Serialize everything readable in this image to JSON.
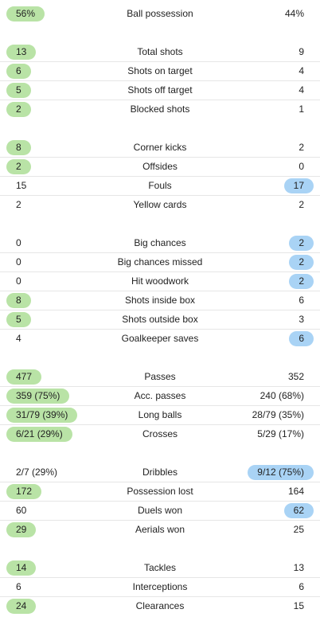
{
  "groups": [
    {
      "rows": [
        {
          "label": "Ball possession",
          "home": "56%",
          "away": "44%",
          "hl": "home"
        }
      ]
    },
    {
      "rows": [
        {
          "label": "Total shots",
          "home": "13",
          "away": "9",
          "hl": "home"
        },
        {
          "label": "Shots on target",
          "home": "6",
          "away": "4",
          "hl": "home"
        },
        {
          "label": "Shots off target",
          "home": "5",
          "away": "4",
          "hl": "home"
        },
        {
          "label": "Blocked shots",
          "home": "2",
          "away": "1",
          "hl": "home"
        }
      ]
    },
    {
      "rows": [
        {
          "label": "Corner kicks",
          "home": "8",
          "away": "2",
          "hl": "home"
        },
        {
          "label": "Offsides",
          "home": "2",
          "away": "0",
          "hl": "home"
        },
        {
          "label": "Fouls",
          "home": "15",
          "away": "17",
          "hl": "away"
        },
        {
          "label": "Yellow cards",
          "home": "2",
          "away": "2",
          "hl": "none"
        }
      ]
    },
    {
      "rows": [
        {
          "label": "Big chances",
          "home": "0",
          "away": "2",
          "hl": "away"
        },
        {
          "label": "Big chances missed",
          "home": "0",
          "away": "2",
          "hl": "away"
        },
        {
          "label": "Hit woodwork",
          "home": "0",
          "away": "2",
          "hl": "away"
        },
        {
          "label": "Shots inside box",
          "home": "8",
          "away": "6",
          "hl": "home"
        },
        {
          "label": "Shots outside box",
          "home": "5",
          "away": "3",
          "hl": "home"
        },
        {
          "label": "Goalkeeper saves",
          "home": "4",
          "away": "6",
          "hl": "away"
        }
      ]
    },
    {
      "rows": [
        {
          "label": "Passes",
          "home": "477",
          "away": "352",
          "hl": "home"
        },
        {
          "label": "Acc. passes",
          "home": "359 (75%)",
          "away": "240 (68%)",
          "hl": "home"
        },
        {
          "label": "Long balls",
          "home": "31/79 (39%)",
          "away": "28/79 (35%)",
          "hl": "home"
        },
        {
          "label": "Crosses",
          "home": "6/21 (29%)",
          "away": "5/29 (17%)",
          "hl": "home"
        }
      ]
    },
    {
      "rows": [
        {
          "label": "Dribbles",
          "home": "2/7 (29%)",
          "away": "9/12 (75%)",
          "hl": "away"
        },
        {
          "label": "Possession lost",
          "home": "172",
          "away": "164",
          "hl": "home"
        },
        {
          "label": "Duels won",
          "home": "60",
          "away": "62",
          "hl": "away"
        },
        {
          "label": "Aerials won",
          "home": "29",
          "away": "25",
          "hl": "home"
        }
      ]
    },
    {
      "rows": [
        {
          "label": "Tackles",
          "home": "14",
          "away": "13",
          "hl": "home"
        },
        {
          "label": "Interceptions",
          "home": "6",
          "away": "6",
          "hl": "none"
        },
        {
          "label": "Clearances",
          "home": "24",
          "away": "15",
          "hl": "home"
        }
      ]
    }
  ]
}
